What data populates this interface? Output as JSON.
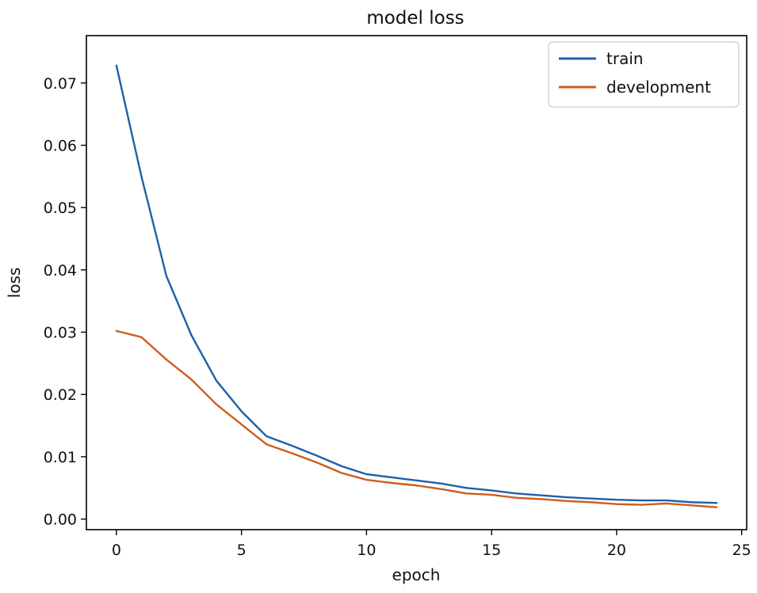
{
  "chart_data": {
    "type": "line",
    "title": "model loss",
    "xlabel": "epoch",
    "ylabel": "loss",
    "xlim": [
      -1.2,
      25.2
    ],
    "ylim": [
      -0.0017,
      0.0776
    ],
    "x_ticks": [
      0,
      5,
      10,
      15,
      20,
      25
    ],
    "x_tick_labels": [
      "0",
      "5",
      "10",
      "15",
      "20",
      "25"
    ],
    "y_ticks": [
      0.0,
      0.01,
      0.02,
      0.03,
      0.04,
      0.05,
      0.06,
      0.07
    ],
    "y_tick_labels": [
      "0.00",
      "0.01",
      "0.02",
      "0.03",
      "0.04",
      "0.05",
      "0.06",
      "0.07"
    ],
    "grid": false,
    "legend_position": "top-right",
    "x": [
      0,
      1,
      2,
      3,
      4,
      5,
      6,
      7,
      8,
      9,
      10,
      11,
      12,
      13,
      14,
      15,
      16,
      17,
      18,
      19,
      20,
      21,
      22,
      23,
      24
    ],
    "series": [
      {
        "name": "train",
        "color": "#1f5fa8",
        "values": [
          0.0728,
          0.055,
          0.039,
          0.0295,
          0.0222,
          0.0173,
          0.0133,
          0.0118,
          0.0102,
          0.0085,
          0.0072,
          0.0067,
          0.0062,
          0.0057,
          0.005,
          0.0046,
          0.0041,
          0.0038,
          0.0035,
          0.0033,
          0.0031,
          0.003,
          0.003,
          0.0027,
          0.0026
        ]
      },
      {
        "name": "development",
        "color": "#d05b1d",
        "values": [
          0.0302,
          0.0292,
          0.0256,
          0.0224,
          0.0184,
          0.0152,
          0.012,
          0.0106,
          0.0091,
          0.0074,
          0.0063,
          0.0058,
          0.0054,
          0.0048,
          0.0041,
          0.0039,
          0.0034,
          0.0032,
          0.0029,
          0.0027,
          0.0024,
          0.0023,
          0.0025,
          0.0022,
          0.0019
        ]
      }
    ]
  }
}
